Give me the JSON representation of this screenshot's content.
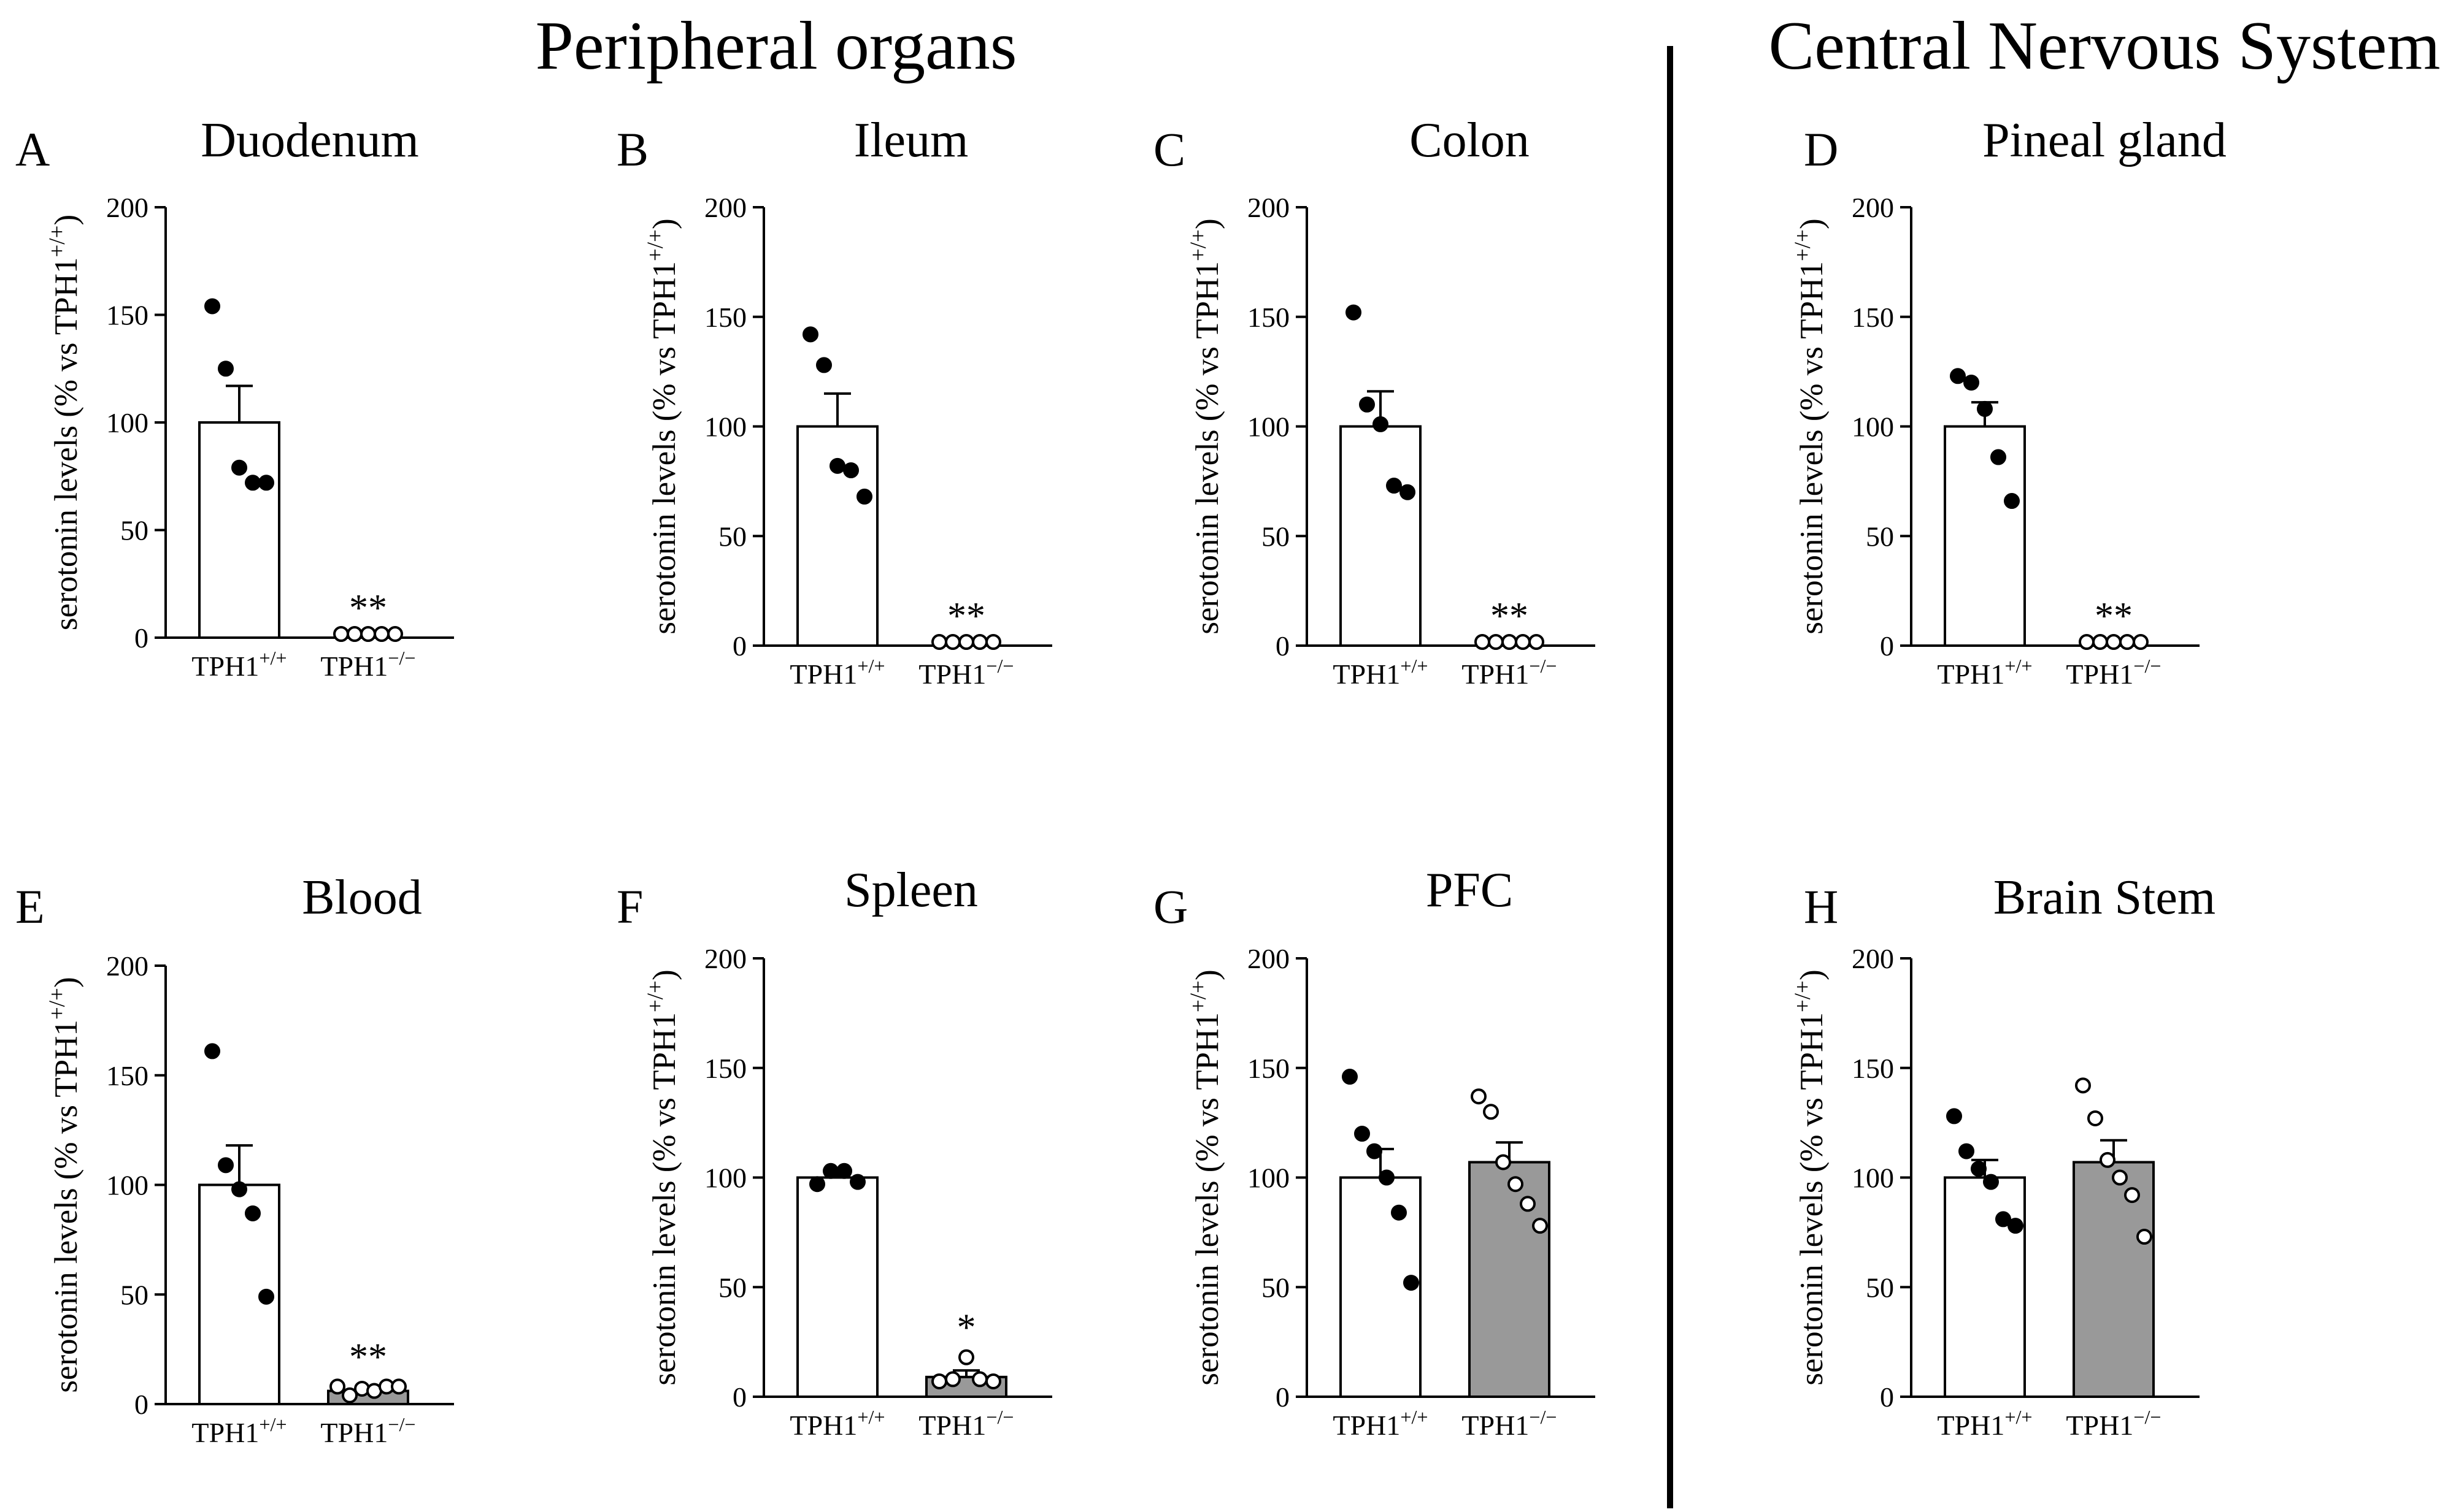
{
  "sections": {
    "peripheral_title": "Peripheral organs",
    "cns_title": "Central Nervous System"
  },
  "colors": {
    "wt_fill": "#ffffff",
    "ko_fill_gray": "#999999",
    "stroke": "#000000"
  },
  "chart_data": [
    {
      "letter": "A",
      "title": "Duodenum",
      "type": "bar",
      "ylabel": "serotonin levels (% vs TPH1+/+)",
      "ylim": [
        0,
        200
      ],
      "yticks": [
        0,
        50,
        100,
        150,
        200
      ],
      "categories": [
        "TPH1+/+",
        "TPH1−/−"
      ],
      "bars": [
        {
          "category": "TPH1+/+",
          "value": 100,
          "sem": 17,
          "fill": "white",
          "points": [
            154,
            125,
            79,
            72,
            72
          ],
          "marker": "filled"
        },
        {
          "category": "TPH1−/−",
          "value": 0,
          "sem": 0,
          "fill": "white",
          "points": [
            0,
            0,
            0,
            0,
            0
          ],
          "marker": "open"
        }
      ],
      "significance": "**"
    },
    {
      "letter": "B",
      "title": "Ileum",
      "type": "bar",
      "ylabel": "serotonin levels (% vs TPH1+/+)",
      "ylim": [
        0,
        200
      ],
      "yticks": [
        0,
        50,
        100,
        150,
        200
      ],
      "categories": [
        "TPH1+/+",
        "TPH1−/−"
      ],
      "bars": [
        {
          "category": "TPH1+/+",
          "value": 100,
          "sem": 15,
          "fill": "white",
          "points": [
            142,
            128,
            82,
            80,
            68
          ],
          "marker": "filled"
        },
        {
          "category": "TPH1−/−",
          "value": 0,
          "sem": 0,
          "fill": "white",
          "points": [
            0,
            0,
            0,
            0,
            0
          ],
          "marker": "open"
        }
      ],
      "significance": "**"
    },
    {
      "letter": "C",
      "title": "Colon",
      "type": "bar",
      "ylabel": "serotonin levels (% vs TPH1+/+)",
      "ylim": [
        0,
        200
      ],
      "yticks": [
        0,
        50,
        100,
        150,
        200
      ],
      "categories": [
        "TPH1+/+",
        "TPH1−/−"
      ],
      "bars": [
        {
          "category": "TPH1+/+",
          "value": 100,
          "sem": 16,
          "fill": "white",
          "points": [
            152,
            110,
            101,
            73,
            70
          ],
          "marker": "filled"
        },
        {
          "category": "TPH1−/−",
          "value": 0,
          "sem": 0,
          "fill": "white",
          "points": [
            0,
            0,
            0,
            0,
            0
          ],
          "marker": "open"
        }
      ],
      "significance": "**"
    },
    {
      "letter": "D",
      "title": "Pineal gland",
      "type": "bar",
      "ylabel": "serotonin levels (% vs TPH1+/+)",
      "ylim": [
        0,
        200
      ],
      "yticks": [
        0,
        50,
        100,
        150,
        200
      ],
      "categories": [
        "TPH1+/+",
        "TPH1−/−"
      ],
      "bars": [
        {
          "category": "TPH1+/+",
          "value": 100,
          "sem": 11,
          "fill": "white",
          "points": [
            123,
            120,
            108,
            86,
            66
          ],
          "marker": "filled"
        },
        {
          "category": "TPH1−/−",
          "value": 0,
          "sem": 0,
          "fill": "white",
          "points": [
            0,
            0,
            0,
            0,
            0
          ],
          "marker": "open"
        }
      ],
      "significance": "**"
    },
    {
      "letter": "E",
      "title": "Blood",
      "type": "bar",
      "ylabel": "serotonin levels (% vs TPH1+/+)",
      "ylim": [
        0,
        200
      ],
      "yticks": [
        0,
        50,
        100,
        150,
        200
      ],
      "categories": [
        "TPH1+/+",
        "TPH1−/−"
      ],
      "bars": [
        {
          "category": "TPH1+/+",
          "value": 100,
          "sem": 18,
          "fill": "white",
          "points": [
            161,
            109,
            98,
            87,
            49
          ],
          "marker": "filled"
        },
        {
          "category": "TPH1−/−",
          "value": 6,
          "sem": 1,
          "fill": "gray",
          "points": [
            8,
            4,
            7,
            6,
            8,
            8
          ],
          "marker": "open"
        }
      ],
      "significance": "**"
    },
    {
      "letter": "F",
      "title": "Spleen",
      "type": "bar",
      "ylabel": "serotonin levels (% vs TPH1+/+)",
      "ylim": [
        0,
        200
      ],
      "yticks": [
        0,
        50,
        100,
        150,
        200
      ],
      "categories": [
        "TPH1+/+",
        "TPH1−/−"
      ],
      "bars": [
        {
          "category": "TPH1+/+",
          "value": 100,
          "sem": 2,
          "fill": "white",
          "points": [
            97,
            103,
            103,
            98
          ],
          "marker": "filled"
        },
        {
          "category": "TPH1−/−",
          "value": 9,
          "sem": 3,
          "fill": "gray",
          "points": [
            7,
            8,
            18,
            8,
            7
          ],
          "marker": "open"
        }
      ],
      "significance": "*"
    },
    {
      "letter": "G",
      "title": "PFC",
      "type": "bar",
      "ylabel": "serotonin levels (% vs TPH1+/+)",
      "ylim": [
        0,
        200
      ],
      "yticks": [
        0,
        50,
        100,
        150,
        200
      ],
      "categories": [
        "TPH1+/+",
        "TPH1−/−"
      ],
      "bars": [
        {
          "category": "TPH1+/+",
          "value": 100,
          "sem": 13,
          "fill": "white",
          "points": [
            146,
            120,
            112,
            100,
            84,
            52
          ],
          "marker": "filled"
        },
        {
          "category": "TPH1−/−",
          "value": 107,
          "sem": 9,
          "fill": "gray",
          "points": [
            137,
            130,
            107,
            97,
            88,
            78
          ],
          "marker": "open"
        }
      ],
      "significance": ""
    },
    {
      "letter": "H",
      "title": "Brain Stem",
      "type": "bar",
      "ylabel": "serotonin levels (% vs TPH1+/+)",
      "ylim": [
        0,
        200
      ],
      "yticks": [
        0,
        50,
        100,
        150,
        200
      ],
      "categories": [
        "TPH1+/+",
        "TPH1−/−"
      ],
      "bars": [
        {
          "category": "TPH1+/+",
          "value": 100,
          "sem": 8,
          "fill": "white",
          "points": [
            128,
            112,
            104,
            98,
            81,
            78
          ],
          "marker": "filled"
        },
        {
          "category": "TPH1−/−",
          "value": 107,
          "sem": 10,
          "fill": "gray",
          "points": [
            142,
            127,
            108,
            100,
            92,
            73
          ],
          "marker": "open"
        }
      ],
      "significance": ""
    }
  ]
}
